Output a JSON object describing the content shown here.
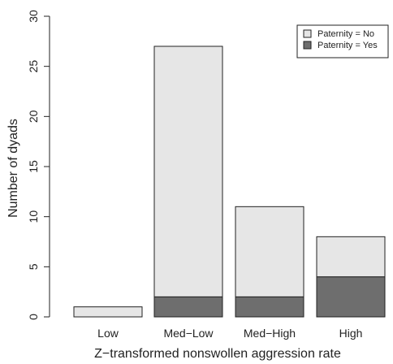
{
  "chart_data": {
    "type": "bar",
    "stacked": true,
    "categories": [
      "Low",
      "Med−Low",
      "Med−High",
      "High"
    ],
    "series": [
      {
        "name": "Paternity = Yes",
        "values": [
          0,
          2,
          2,
          4
        ],
        "color": "#6e6e6e"
      },
      {
        "name": "Paternity = No",
        "values": [
          1,
          25,
          9,
          4
        ],
        "color": "#e6e6e6"
      }
    ],
    "xlabel": "Z−transformed nonswollen aggression rate",
    "ylabel": "Number of dyads",
    "ylim": [
      0,
      30
    ],
    "yticks": [
      0,
      5,
      10,
      15,
      20,
      25,
      30
    ],
    "grid": false,
    "legend": {
      "position": "top-right",
      "entries": [
        {
          "label": "Paternity = No",
          "color": "#e6e6e6"
        },
        {
          "label": "Paternity = Yes",
          "color": "#6e6e6e"
        }
      ]
    }
  }
}
